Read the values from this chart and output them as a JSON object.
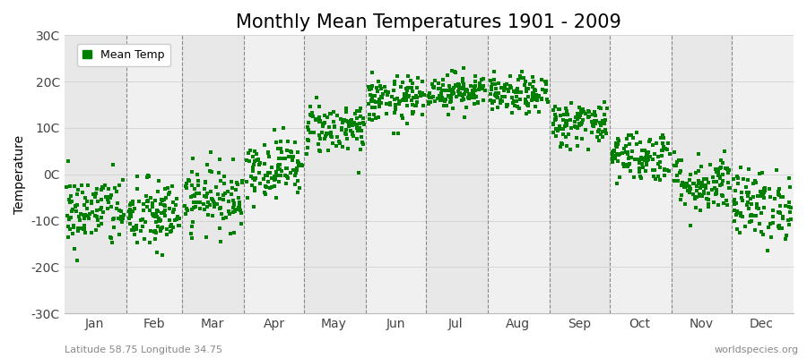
{
  "title": "Monthly Mean Temperatures 1901 - 2009",
  "ylabel": "Temperature",
  "ylim": [
    -30,
    30
  ],
  "yticks": [
    -30,
    -20,
    -10,
    0,
    10,
    20,
    30
  ],
  "ytick_labels": [
    "-30C",
    "-20C",
    "-10C",
    "0C",
    "10C",
    "20C",
    "30C"
  ],
  "months": [
    "Jan",
    "Feb",
    "Mar",
    "Apr",
    "May",
    "Jun",
    "Jul",
    "Aug",
    "Sep",
    "Oct",
    "Nov",
    "Dec"
  ],
  "month_days": [
    31,
    28,
    31,
    30,
    31,
    30,
    31,
    31,
    30,
    31,
    30,
    31
  ],
  "dot_color": "#008000",
  "background_color": "#f0f0f0",
  "band_colors": [
    "#e8e8e8",
    "#f0f0f0"
  ],
  "title_fontsize": 15,
  "label_fontsize": 10,
  "subtitle_left": "Latitude 58.75 Longitude 34.75",
  "subtitle_right": "worldspecies.org",
  "legend_label": "Mean Temp",
  "mean_temps": [
    -8.0,
    -9.0,
    -5.0,
    1.5,
    10.0,
    16.0,
    18.0,
    17.0,
    11.0,
    4.0,
    -2.0,
    -6.5
  ],
  "std_devs": [
    4.0,
    4.0,
    3.5,
    3.2,
    2.8,
    2.5,
    2.0,
    2.0,
    2.5,
    2.8,
    3.2,
    3.8
  ],
  "n_years": 109,
  "random_seed": 42
}
